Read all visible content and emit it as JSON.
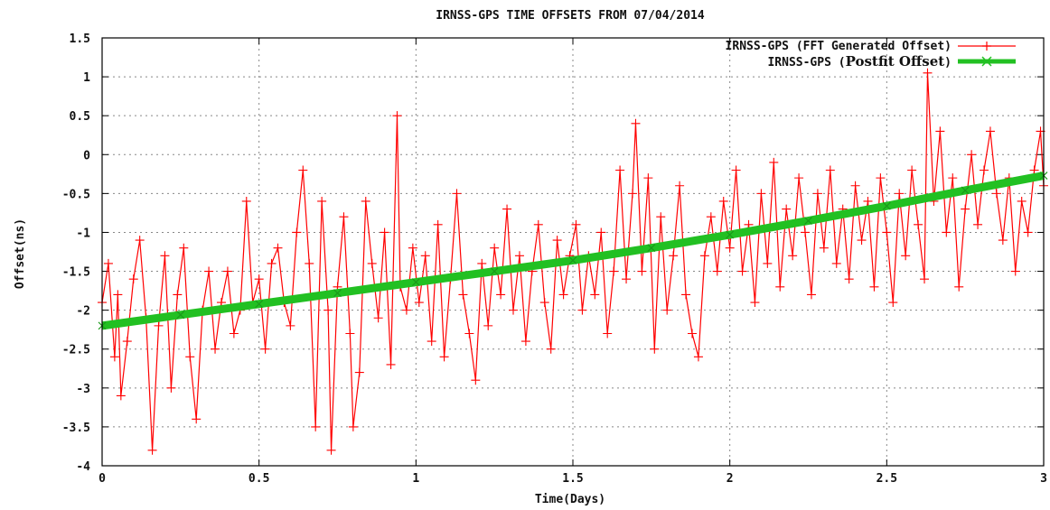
{
  "chart_data": {
    "type": "line",
    "title": "IRNSS-GPS TIME OFFSETS FROM 07/04/2014",
    "xlabel": "Time(Days)",
    "ylabel": "Offset(ns)",
    "xlim": [
      0,
      3
    ],
    "ylim": [
      -4,
      1.5
    ],
    "grid": true,
    "legend_position": "top-right",
    "x_ticks": [
      "0",
      "0.5",
      "1",
      "1.5",
      "2",
      "2.5",
      "3"
    ],
    "y_ticks": [
      "1.5",
      "1",
      "0.5",
      "0",
      "-0.5",
      "-1",
      "-1.5",
      "-2",
      "-2.5",
      "-3",
      "-3.5",
      "-4"
    ],
    "series": [
      {
        "name": "IRNSS-GPS (FFT Generated Offset)",
        "legend_prefix": "IRNSS-GPS (FFT Generated Offset)",
        "color": "#ff0000",
        "style": "linespoints",
        "marker": "plus",
        "points": [
          [
            0.0,
            -1.9
          ],
          [
            0.02,
            -1.4
          ],
          [
            0.04,
            -2.6
          ],
          [
            0.05,
            -1.8
          ],
          [
            0.06,
            -3.1
          ],
          [
            0.08,
            -2.4
          ],
          [
            0.1,
            -1.6
          ],
          [
            0.12,
            -1.1
          ],
          [
            0.14,
            -2.1
          ],
          [
            0.16,
            -3.8
          ],
          [
            0.18,
            -2.2
          ],
          [
            0.2,
            -1.3
          ],
          [
            0.22,
            -3.0
          ],
          [
            0.24,
            -1.8
          ],
          [
            0.26,
            -1.2
          ],
          [
            0.28,
            -2.6
          ],
          [
            0.3,
            -3.4
          ],
          [
            0.32,
            -2.0
          ],
          [
            0.34,
            -1.5
          ],
          [
            0.36,
            -2.5
          ],
          [
            0.38,
            -1.9
          ],
          [
            0.4,
            -1.5
          ],
          [
            0.42,
            -2.3
          ],
          [
            0.44,
            -2.0
          ],
          [
            0.46,
            -0.6
          ],
          [
            0.48,
            -1.9
          ],
          [
            0.5,
            -1.6
          ],
          [
            0.52,
            -2.5
          ],
          [
            0.54,
            -1.4
          ],
          [
            0.56,
            -1.2
          ],
          [
            0.58,
            -1.9
          ],
          [
            0.6,
            -2.2
          ],
          [
            0.62,
            -1.0
          ],
          [
            0.64,
            -0.2
          ],
          [
            0.66,
            -1.4
          ],
          [
            0.68,
            -3.5
          ],
          [
            0.7,
            -0.6
          ],
          [
            0.72,
            -2.0
          ],
          [
            0.73,
            -3.8
          ],
          [
            0.75,
            -1.7
          ],
          [
            0.77,
            -0.8
          ],
          [
            0.79,
            -2.3
          ],
          [
            0.8,
            -3.5
          ],
          [
            0.82,
            -2.8
          ],
          [
            0.84,
            -0.6
          ],
          [
            0.86,
            -1.4
          ],
          [
            0.88,
            -2.1
          ],
          [
            0.9,
            -1.0
          ],
          [
            0.92,
            -2.7
          ],
          [
            0.94,
            0.5
          ],
          [
            0.95,
            -1.7
          ],
          [
            0.97,
            -2.0
          ],
          [
            0.99,
            -1.2
          ],
          [
            1.01,
            -1.9
          ],
          [
            1.03,
            -1.3
          ],
          [
            1.05,
            -2.4
          ],
          [
            1.07,
            -0.9
          ],
          [
            1.09,
            -2.6
          ],
          [
            1.11,
            -1.6
          ],
          [
            1.13,
            -0.5
          ],
          [
            1.15,
            -1.8
          ],
          [
            1.17,
            -2.3
          ],
          [
            1.19,
            -2.9
          ],
          [
            1.21,
            -1.4
          ],
          [
            1.23,
            -2.2
          ],
          [
            1.25,
            -1.2
          ],
          [
            1.27,
            -1.8
          ],
          [
            1.29,
            -0.7
          ],
          [
            1.31,
            -2.0
          ],
          [
            1.33,
            -1.3
          ],
          [
            1.35,
            -2.4
          ],
          [
            1.37,
            -1.5
          ],
          [
            1.39,
            -0.9
          ],
          [
            1.41,
            -1.9
          ],
          [
            1.43,
            -2.5
          ],
          [
            1.45,
            -1.1
          ],
          [
            1.47,
            -1.8
          ],
          [
            1.49,
            -1.3
          ],
          [
            1.51,
            -0.9
          ],
          [
            1.53,
            -2.0
          ],
          [
            1.55,
            -1.3
          ],
          [
            1.57,
            -1.8
          ],
          [
            1.59,
            -1.0
          ],
          [
            1.61,
            -2.3
          ],
          [
            1.63,
            -1.5
          ],
          [
            1.65,
            -0.2
          ],
          [
            1.67,
            -1.6
          ],
          [
            1.69,
            -0.5
          ],
          [
            1.7,
            0.4
          ],
          [
            1.72,
            -1.5
          ],
          [
            1.74,
            -0.3
          ],
          [
            1.76,
            -2.5
          ],
          [
            1.78,
            -0.8
          ],
          [
            1.8,
            -2.0
          ],
          [
            1.82,
            -1.3
          ],
          [
            1.84,
            -0.4
          ],
          [
            1.86,
            -1.8
          ],
          [
            1.88,
            -2.3
          ],
          [
            1.9,
            -2.6
          ],
          [
            1.92,
            -1.3
          ],
          [
            1.94,
            -0.8
          ],
          [
            1.96,
            -1.5
          ],
          [
            1.98,
            -0.6
          ],
          [
            2.0,
            -1.2
          ],
          [
            2.02,
            -0.2
          ],
          [
            2.04,
            -1.5
          ],
          [
            2.06,
            -0.9
          ],
          [
            2.08,
            -1.9
          ],
          [
            2.1,
            -0.5
          ],
          [
            2.12,
            -1.4
          ],
          [
            2.14,
            -0.1
          ],
          [
            2.16,
            -1.7
          ],
          [
            2.18,
            -0.7
          ],
          [
            2.2,
            -1.3
          ],
          [
            2.22,
            -0.3
          ],
          [
            2.24,
            -1.0
          ],
          [
            2.26,
            -1.8
          ],
          [
            2.28,
            -0.5
          ],
          [
            2.3,
            -1.2
          ],
          [
            2.32,
            -0.2
          ],
          [
            2.34,
            -1.4
          ],
          [
            2.36,
            -0.7
          ],
          [
            2.38,
            -1.6
          ],
          [
            2.4,
            -0.4
          ],
          [
            2.42,
            -1.1
          ],
          [
            2.44,
            -0.6
          ],
          [
            2.46,
            -1.7
          ],
          [
            2.48,
            -0.3
          ],
          [
            2.5,
            -1.0
          ],
          [
            2.52,
            -1.9
          ],
          [
            2.54,
            -0.5
          ],
          [
            2.56,
            -1.3
          ],
          [
            2.58,
            -0.2
          ],
          [
            2.6,
            -0.9
          ],
          [
            2.62,
            -1.6
          ],
          [
            2.63,
            1.05
          ],
          [
            2.65,
            -0.6
          ],
          [
            2.67,
            0.3
          ],
          [
            2.69,
            -1.0
          ],
          [
            2.71,
            -0.3
          ],
          [
            2.73,
            -1.7
          ],
          [
            2.75,
            -0.7
          ],
          [
            2.77,
            0.0
          ],
          [
            2.79,
            -0.9
          ],
          [
            2.81,
            -0.2
          ],
          [
            2.83,
            0.3
          ],
          [
            2.85,
            -0.5
          ],
          [
            2.87,
            -1.1
          ],
          [
            2.89,
            -0.3
          ],
          [
            2.91,
            -1.5
          ],
          [
            2.93,
            -0.6
          ],
          [
            2.95,
            -1.0
          ],
          [
            2.97,
            -0.2
          ],
          [
            2.99,
            0.3
          ],
          [
            3.0,
            -0.4
          ]
        ]
      },
      {
        "name": "IRNSS-GPS (Postfit Offset)",
        "legend_prefix": "IRNSS-GPS (",
        "legend_middle": "Postfit Offset",
        "legend_suffix": ")",
        "color": "#22c022",
        "style": "linespoints",
        "marker": "cross",
        "points": [
          [
            0.0,
            -2.2
          ],
          [
            0.25,
            -2.06
          ],
          [
            0.5,
            -1.92
          ],
          [
            0.75,
            -1.78
          ],
          [
            1.0,
            -1.64
          ],
          [
            1.25,
            -1.5
          ],
          [
            1.5,
            -1.36
          ],
          [
            1.75,
            -1.2
          ],
          [
            2.0,
            -1.03
          ],
          [
            2.25,
            -0.85
          ],
          [
            2.5,
            -0.66
          ],
          [
            2.75,
            -0.46
          ],
          [
            3.0,
            -0.27
          ]
        ]
      }
    ]
  }
}
